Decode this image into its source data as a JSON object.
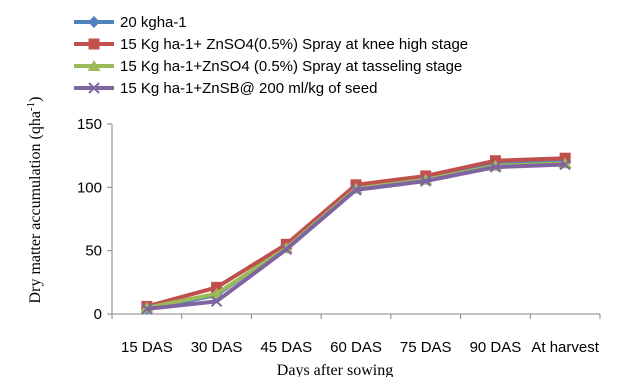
{
  "chart_data": {
    "type": "line",
    "xlabel": "Days after sowing",
    "ylabel_main": "Dry matter accumulation  (qha",
    "ylabel_sup": "-1",
    "ylabel_close": ")",
    "ylim": [
      0,
      150
    ],
    "yticks": [
      0,
      50,
      100,
      150
    ],
    "categories": [
      "15 DAS",
      "30 DAS",
      "45 DAS",
      "60 DAS",
      "75 DAS",
      "90 DAS",
      "At harvest"
    ],
    "grid": false,
    "legend_position": "top-left",
    "series": [
      {
        "name": "20 kgha-1",
        "color": "#4F81BD",
        "marker": "diamond",
        "values": [
          4,
          15,
          53,
          100,
          107,
          118,
          120
        ]
      },
      {
        "name": "15 Kg ha-1+ ZnSO4(0.5%) Spray at knee high stage",
        "color": "#C0504D",
        "marker": "square",
        "values": [
          6,
          21,
          55,
          102,
          109,
          121,
          123
        ]
      },
      {
        "name": "15 Kg ha-1+ZnSO4 (0.5%) Spray at tasseling stage",
        "color": "#9BBB59",
        "marker": "triangle",
        "values": [
          5,
          16,
          52,
          99,
          106,
          117,
          119
        ]
      },
      {
        "name": "15 Kg ha-1+ZnSB@ 200 ml/kg of seed",
        "color": "#8064A2",
        "marker": "x",
        "values": [
          4,
          10,
          51,
          98,
          105,
          116,
          118
        ]
      }
    ]
  }
}
